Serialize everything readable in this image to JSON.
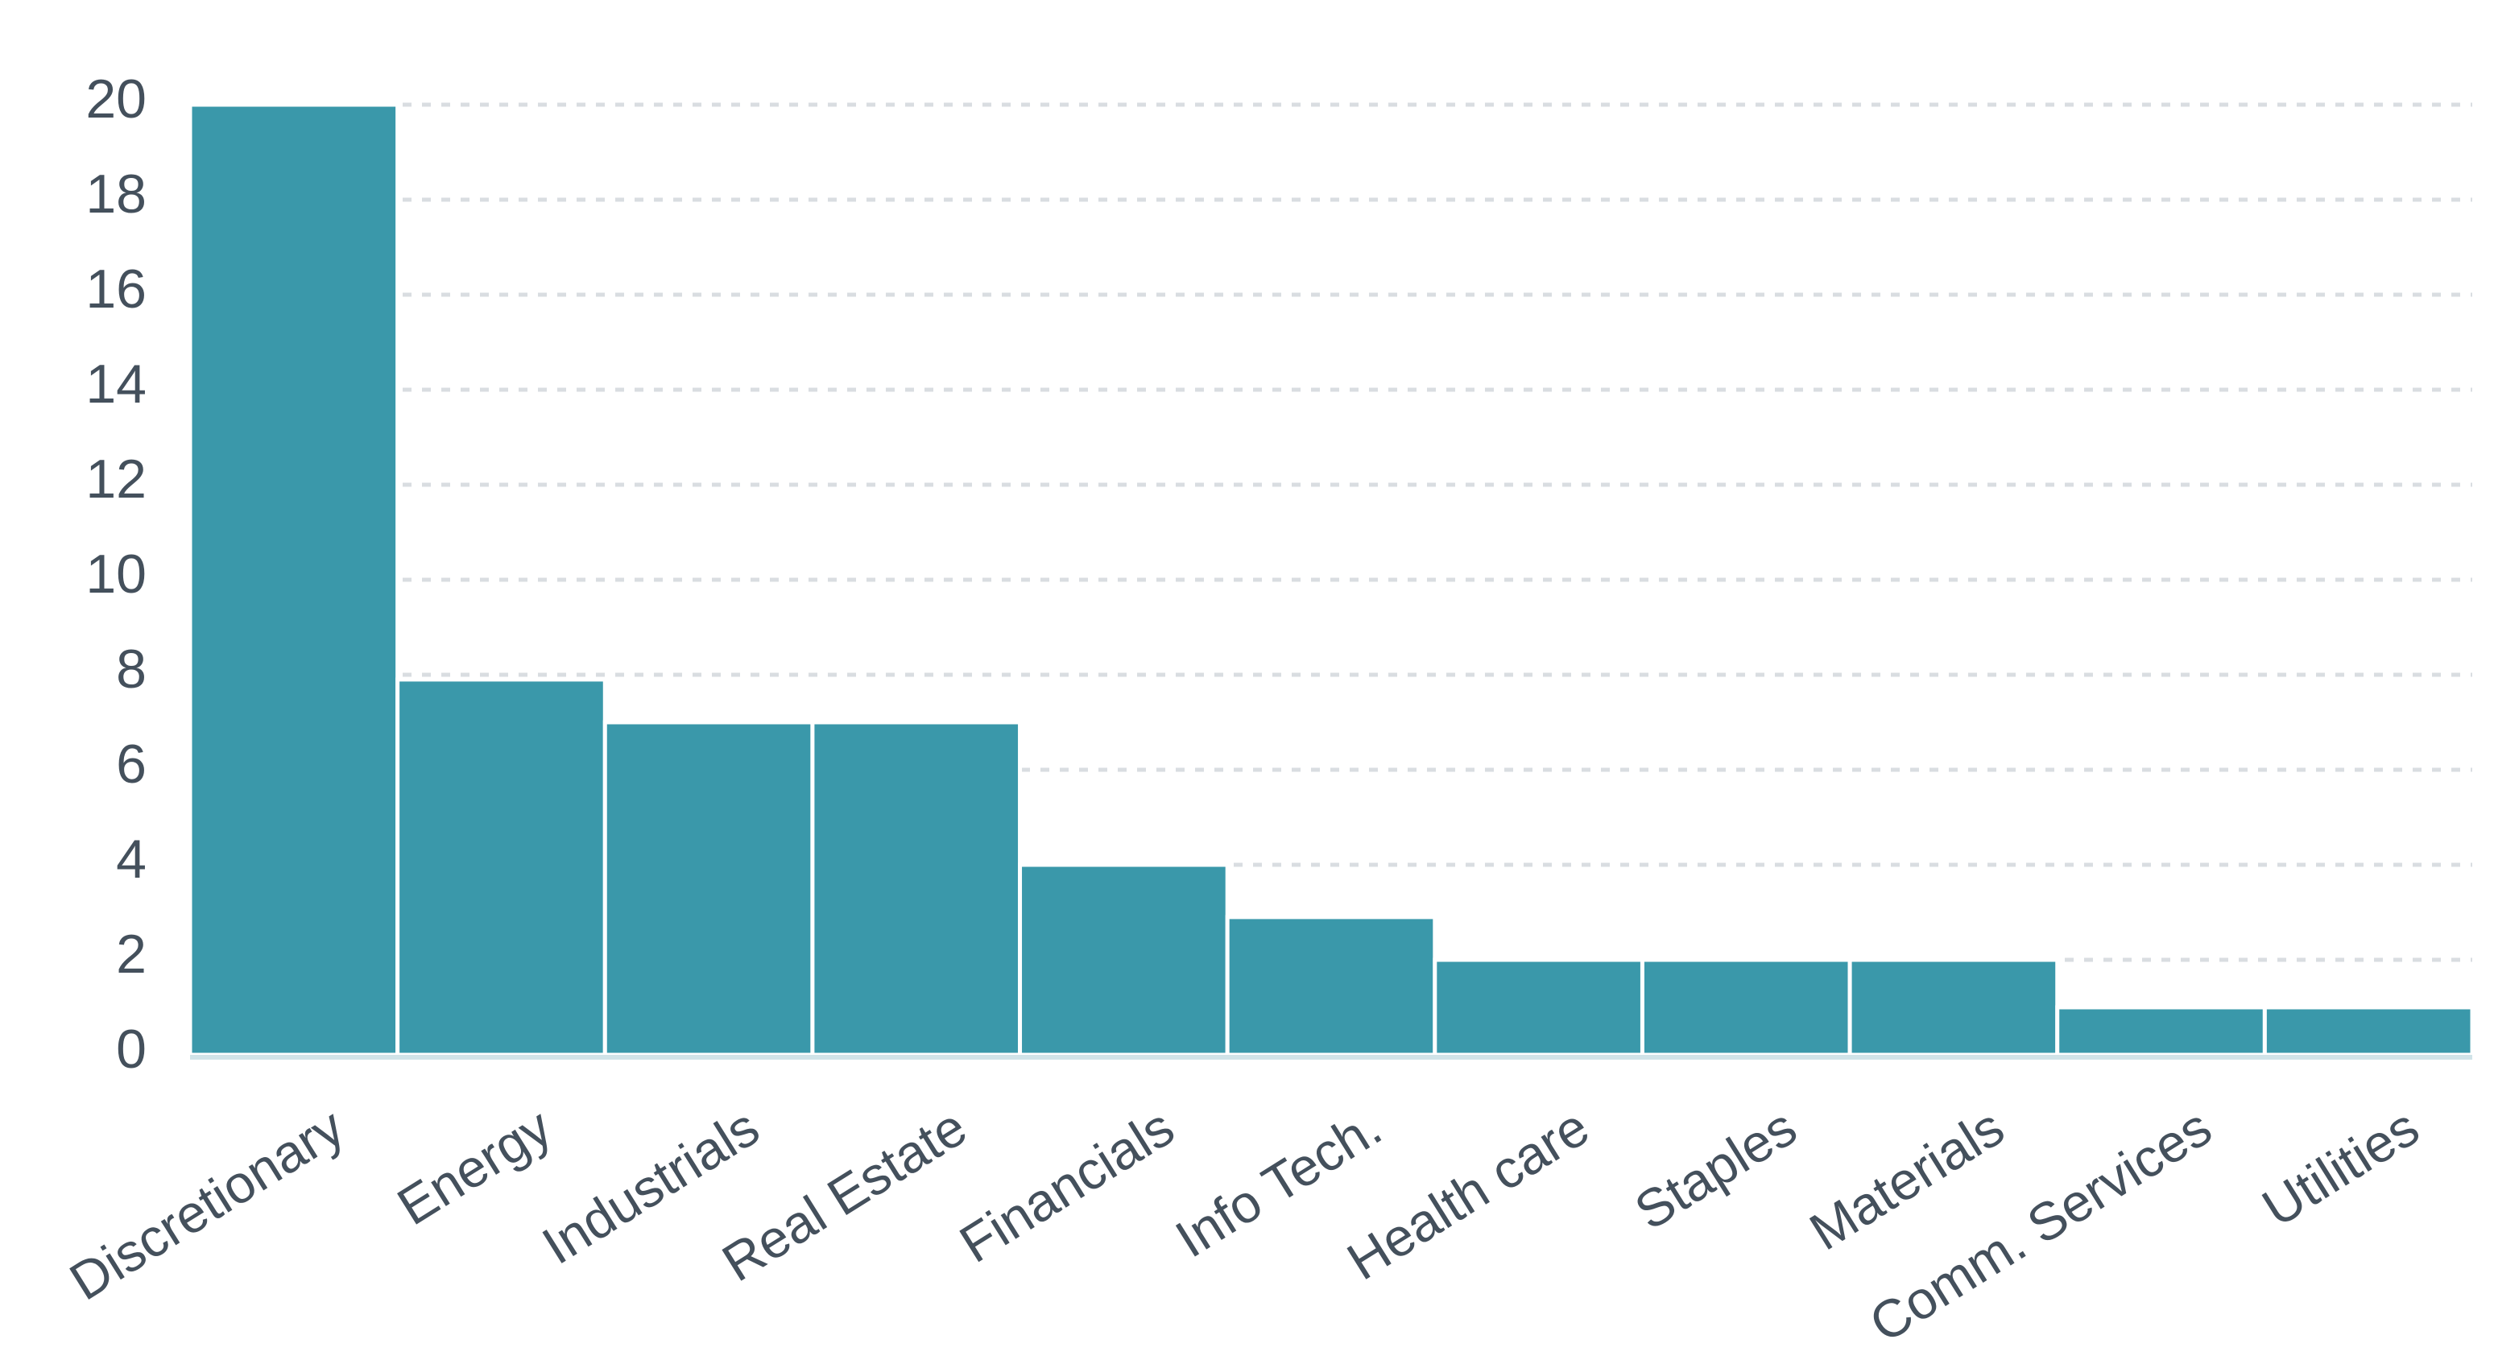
{
  "chart_data": {
    "type": "bar",
    "title": "",
    "xlabel": "",
    "ylabel": "",
    "categories": [
      "Discretionary",
      "Energy",
      "Industrials",
      "Real Estate",
      "Financials",
      "Info Tech.",
      "Health care",
      "Staples",
      "Materials",
      "Comm. Services",
      "Utilities"
    ],
    "values": [
      20,
      7.9,
      7,
      7,
      4,
      2.9,
      2,
      2,
      2,
      1,
      1
    ],
    "ylim": [
      0,
      20
    ],
    "yticks": [
      "0",
      "2",
      "4",
      "6",
      "8",
      "10",
      "12",
      "14",
      "16",
      "18",
      "20"
    ],
    "grid": true,
    "gridStyle": "dashed",
    "legend": "none",
    "colors": {
      "bar": "#3a98aa",
      "grid": "#d9dde1",
      "axis": "#d0e3e8",
      "text": "#44505c"
    }
  }
}
